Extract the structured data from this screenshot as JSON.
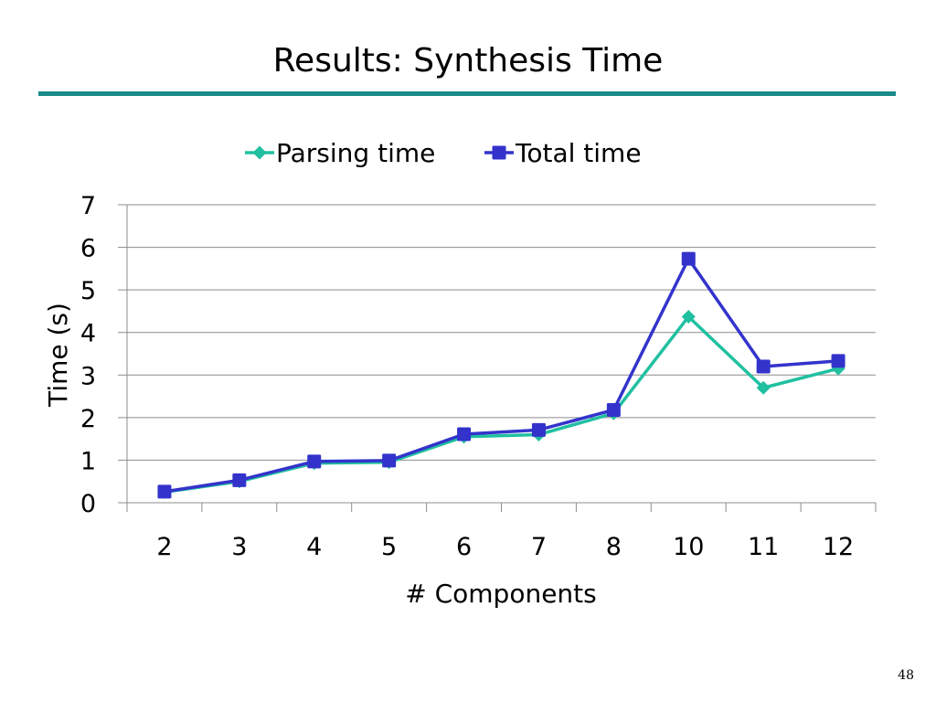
{
  "slide": {
    "title": "Results: Synthesis Time",
    "page_number": "48",
    "rule_color": "#1a8a8a"
  },
  "chart_data": {
    "type": "line",
    "xlabel": "# Components",
    "ylabel": "Time (s)",
    "categories": [
      "2",
      "3",
      "4",
      "5",
      "6",
      "7",
      "8",
      "10",
      "11",
      "12"
    ],
    "ylim": [
      0,
      7
    ],
    "yticks": [
      "0",
      "1",
      "2",
      "3",
      "4",
      "5",
      "6",
      "7"
    ],
    "grid": true,
    "legend_position": "top",
    "series": [
      {
        "name": "Parsing time",
        "marker": "diamond",
        "color": "#20c0a0",
        "values": [
          0.25,
          0.5,
          0.93,
          0.95,
          1.55,
          1.6,
          2.1,
          4.37,
          2.7,
          3.15
        ]
      },
      {
        "name": "Total time",
        "marker": "square",
        "color": "#3333cc",
        "values": [
          0.26,
          0.53,
          0.97,
          0.99,
          1.61,
          1.71,
          2.18,
          5.73,
          3.2,
          3.33
        ]
      }
    ]
  }
}
